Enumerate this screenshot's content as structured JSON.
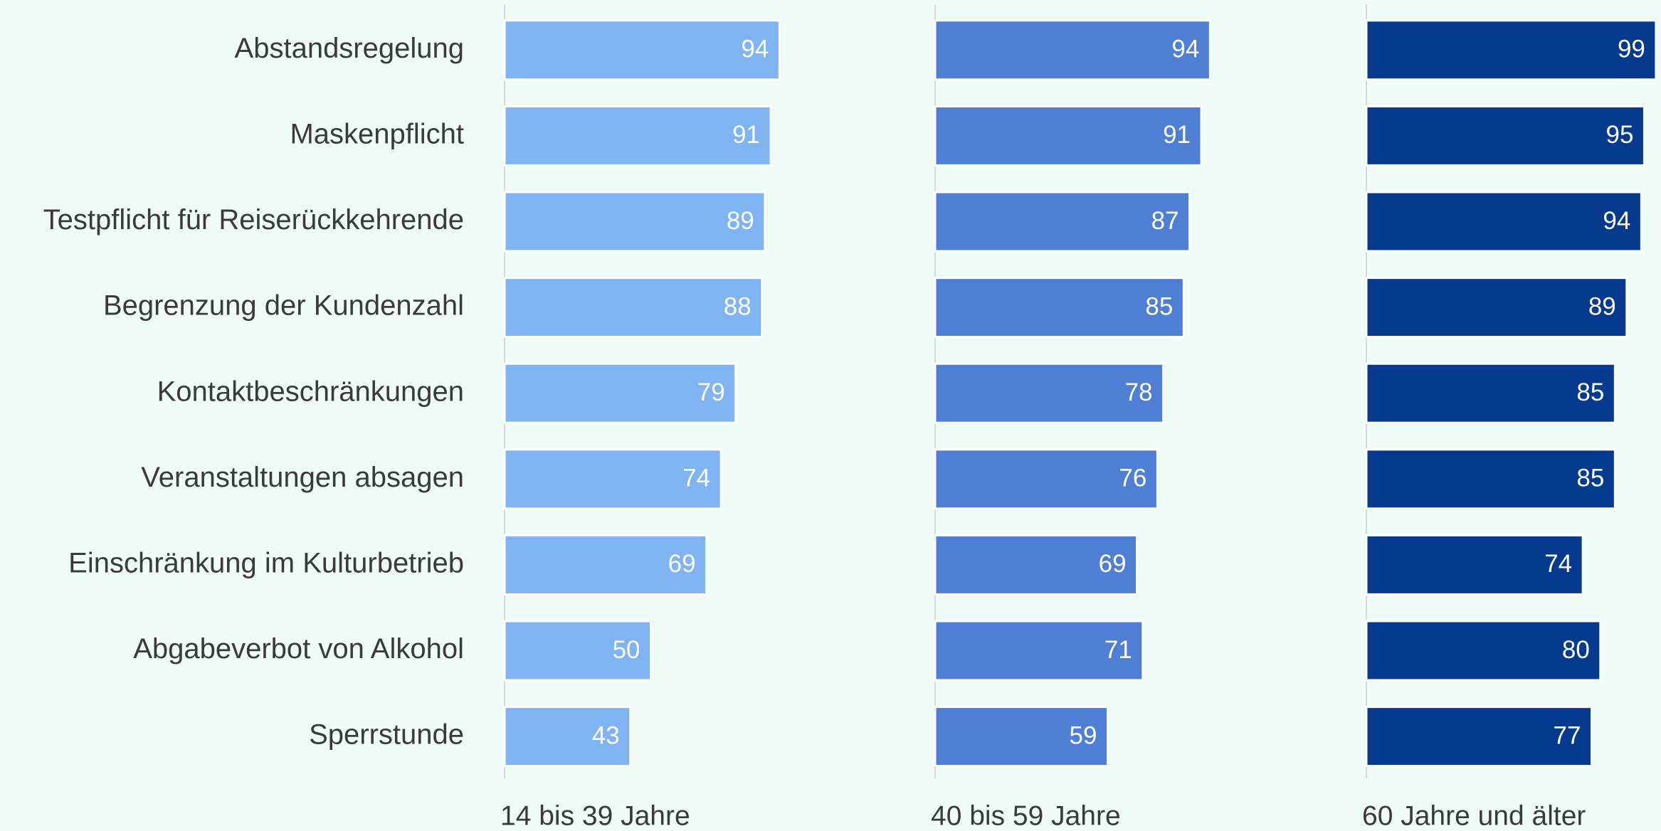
{
  "chart_data": {
    "type": "bar",
    "orientation": "horizontal",
    "categories": [
      "Abstandsregelung",
      "Maskenpflicht",
      "Testpflicht für Reiserückkehrende",
      "Begrenzung der Kundenzahl",
      "Kontaktbeschränkungen",
      "Veranstaltungen absagen",
      "Einschränkung im Kulturbetrieb",
      "Abgabeverbot von Alkohol",
      "Sperrstunde"
    ],
    "series": [
      {
        "name": "14 bis 39 Jahre",
        "color": "#7fb3f2",
        "values": [
          94,
          91,
          89,
          88,
          79,
          74,
          69,
          50,
          43
        ]
      },
      {
        "name": "40 bis 59 Jahre",
        "color": "#4e7fd4",
        "values": [
          94,
          91,
          87,
          85,
          78,
          76,
          69,
          71,
          59
        ]
      },
      {
        "name": "60 Jahre und älter",
        "color": "#053a8e",
        "values": [
          99,
          95,
          94,
          89,
          85,
          85,
          74,
          80,
          77
        ]
      }
    ],
    "xlim": [
      0,
      100
    ]
  }
}
